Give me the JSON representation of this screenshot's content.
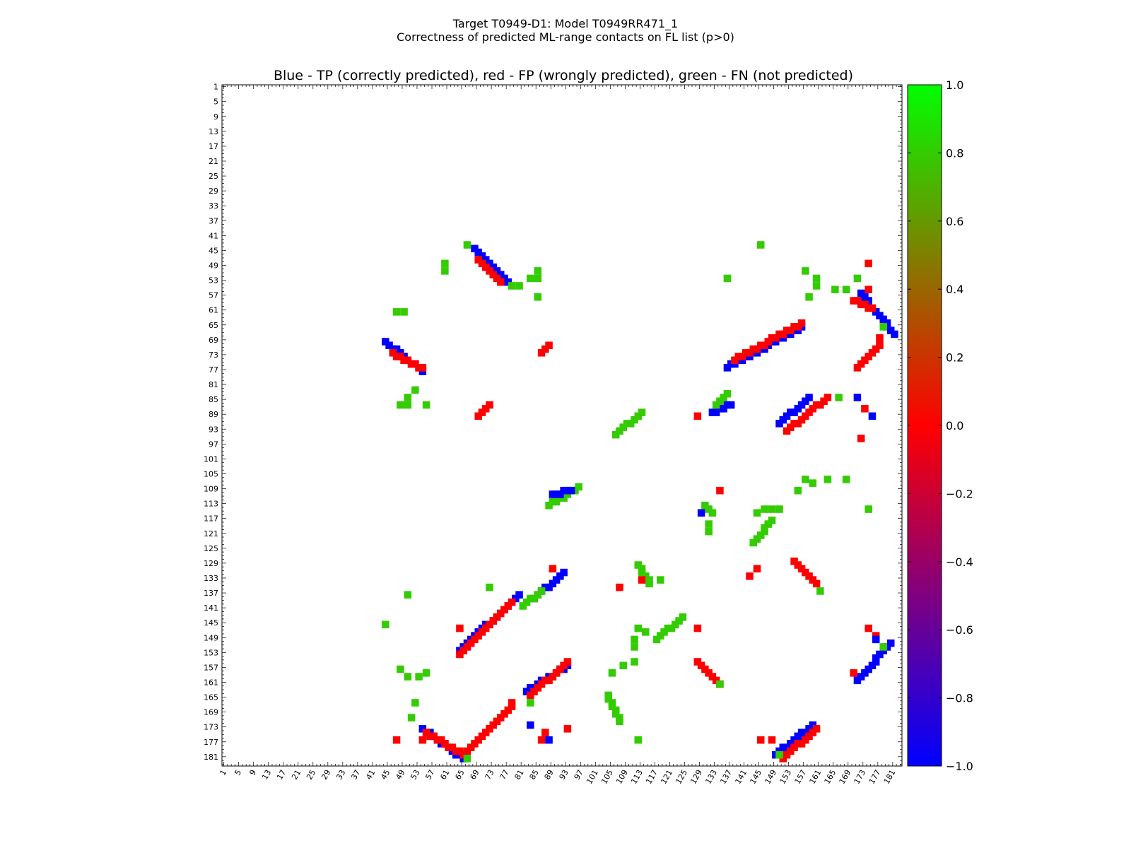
{
  "figure": {
    "title_line1": "Target T0949-D1: Model T0949RR471_1",
    "title_line2": "Correctness of predicted ML-range contacts on FL list (p>0)"
  },
  "chart_data": {
    "type": "heatmap",
    "title": "Blue - TP (correctly predicted), red - FP (wrongly predicted), green - FN (not predicted)",
    "xlabel": "",
    "ylabel": "",
    "grid": false,
    "xlim": [
      1,
      183
    ],
    "ylim": [
      1,
      183
    ],
    "tick_labels": [
      "1",
      "5",
      "9",
      "13",
      "17",
      "21",
      "25",
      "29",
      "33",
      "37",
      "41",
      "45",
      "49",
      "53",
      "57",
      "61",
      "65",
      "69",
      "73",
      "77",
      "81",
      "85",
      "89",
      "93",
      "97",
      "101",
      "105",
      "109",
      "113",
      "117",
      "121",
      "125",
      "129",
      "133",
      "137",
      "141",
      "145",
      "149",
      "153",
      "157",
      "161",
      "165",
      "169",
      "173",
      "177",
      "181"
    ],
    "colorbar": {
      "min": -1.0,
      "max": 1.0,
      "ticks": [
        "1.0",
        "0.8",
        "0.6",
        "0.4",
        "0.2",
        "0.0",
        "−0.2",
        "−0.4",
        "−0.6",
        "−0.8",
        "−1.0"
      ],
      "colors": [
        "#00ff00",
        "#ff0000",
        "#0000ff"
      ]
    },
    "categories": {
      "TP": {
        "value": -1.0,
        "color": "#0000ff"
      },
      "FP": {
        "value": 0.0,
        "color": "#ff0000"
      },
      "FN": {
        "value": 0.8,
        "color": "#33cc00"
      }
    },
    "segments": [
      {
        "x": [
          68,
          77
        ],
        "y": [
          44,
          53
        ],
        "c": "TP"
      },
      {
        "x": [
          69,
          75
        ],
        "y": [
          47,
          53
        ],
        "c": "FP"
      },
      {
        "x": [
          44,
          54
        ],
        "y": [
          69,
          77
        ],
        "c": "TP"
      },
      {
        "x": [
          46,
          54
        ],
        "y": [
          72,
          76
        ],
        "c": "FP"
      },
      {
        "x": [
          136,
          156
        ],
        "y": [
          76,
          65
        ],
        "c": "TP"
      },
      {
        "x": [
          138,
          156
        ],
        "y": [
          74,
          64
        ],
        "c": "FP"
      },
      {
        "x": [
          172,
          181
        ],
        "y": [
          56,
          67
        ],
        "c": "TP"
      },
      {
        "x": [
          170,
          175
        ],
        "y": [
          58,
          60
        ],
        "c": "FP"
      },
      {
        "x": [
          171,
          177
        ],
        "y": [
          76,
          70
        ],
        "c": "FP"
      },
      {
        "x": [
          150,
          158
        ],
        "y": [
          91,
          84
        ],
        "c": "TP"
      },
      {
        "x": [
          152,
          163
        ],
        "y": [
          93,
          84
        ],
        "c": "FP"
      },
      {
        "x": [
          132,
          137
        ],
        "y": [
          88,
          86
        ],
        "c": "TP"
      },
      {
        "x": [
          106,
          113
        ],
        "y": [
          94,
          88
        ],
        "c": "FN"
      },
      {
        "x": [
          88,
          96
        ],
        "y": [
          113,
          108
        ],
        "c": "FN"
      },
      {
        "x": [
          89,
          94
        ],
        "y": [
          110,
          109
        ],
        "c": "TP"
      },
      {
        "x": [
          143,
          148
        ],
        "y": [
          123,
          117
        ],
        "c": "FN"
      },
      {
        "x": [
          117,
          124
        ],
        "y": [
          149,
          143
        ],
        "c": "FN"
      },
      {
        "x": [
          64,
          80
        ],
        "y": [
          152,
          137
        ],
        "c": "TP"
      },
      {
        "x": [
          64,
          78
        ],
        "y": [
          153,
          139
        ],
        "c": "FP"
      },
      {
        "x": [
          84,
          92
        ],
        "y": [
          138,
          131
        ],
        "c": "TP"
      },
      {
        "x": [
          81,
          86
        ],
        "y": [
          140,
          136
        ],
        "c": "FN"
      },
      {
        "x": [
          82,
          93
        ],
        "y": [
          163,
          156
        ],
        "c": "TP"
      },
      {
        "x": [
          83,
          93
        ],
        "y": [
          164,
          155
        ],
        "c": "FP"
      },
      {
        "x": [
          171,
          180
        ],
        "y": [
          160,
          150
        ],
        "c": "TP"
      },
      {
        "x": [
          54,
          65
        ],
        "y": [
          173,
          181
        ],
        "c": "TP"
      },
      {
        "x": [
          55,
          65
        ],
        "y": [
          174,
          180
        ],
        "c": "FP"
      },
      {
        "x": [
          66,
          78
        ],
        "y": [
          179,
          167
        ],
        "c": "FP"
      },
      {
        "x": [
          149,
          159
        ],
        "y": [
          180,
          172
        ],
        "c": "TP"
      },
      {
        "x": [
          151,
          160
        ],
        "y": [
          181,
          173
        ],
        "c": "FP"
      },
      {
        "x": [
          128,
          134
        ],
        "y": [
          155,
          161
        ],
        "c": "FP"
      },
      {
        "x": [
          154,
          160
        ],
        "y": [
          128,
          134
        ],
        "c": "FP"
      },
      {
        "x": [
          86,
          88
        ],
        "y": [
          72,
          70
        ],
        "c": "FP"
      },
      {
        "x": [
          69,
          72
        ],
        "y": [
          89,
          86
        ],
        "c": "FP"
      },
      {
        "x": [
          104,
          107
        ],
        "y": [
          164,
          171
        ],
        "c": "FN"
      },
      {
        "x": [
          112,
          115
        ],
        "y": [
          129,
          134
        ],
        "c": "FN"
      },
      {
        "x": [
          130,
          132
        ],
        "y": [
          113,
          115
        ],
        "c": "FN"
      },
      {
        "x": [
          133,
          136
        ],
        "y": [
          86,
          83
        ],
        "c": "FN"
      }
    ],
    "points": [
      {
        "x": 66,
        "y": 43,
        "c": "FN"
      },
      {
        "x": 60,
        "y": 48,
        "c": "FN"
      },
      {
        "x": 60,
        "y": 50,
        "c": "FN"
      },
      {
        "x": 85,
        "y": 50,
        "c": "FN"
      },
      {
        "x": 83,
        "y": 52,
        "c": "FN"
      },
      {
        "x": 85,
        "y": 52,
        "c": "FN"
      },
      {
        "x": 80,
        "y": 54,
        "c": "FN"
      },
      {
        "x": 85,
        "y": 57,
        "c": "FN"
      },
      {
        "x": 78,
        "y": 54,
        "c": "FN"
      },
      {
        "x": 145,
        "y": 43,
        "c": "FN"
      },
      {
        "x": 136,
        "y": 52,
        "c": "FN"
      },
      {
        "x": 157,
        "y": 50,
        "c": "FN"
      },
      {
        "x": 160,
        "y": 52,
        "c": "FN"
      },
      {
        "x": 160,
        "y": 54,
        "c": "FN"
      },
      {
        "x": 158,
        "y": 57,
        "c": "FN"
      },
      {
        "x": 165,
        "y": 55,
        "c": "FN"
      },
      {
        "x": 168,
        "y": 55,
        "c": "FN"
      },
      {
        "x": 171,
        "y": 52,
        "c": "FN"
      },
      {
        "x": 174,
        "y": 48,
        "c": "FP"
      },
      {
        "x": 174,
        "y": 55,
        "c": "FP"
      },
      {
        "x": 47,
        "y": 61,
        "c": "FN"
      },
      {
        "x": 49,
        "y": 61,
        "c": "FN"
      },
      {
        "x": 52,
        "y": 82,
        "c": "FN"
      },
      {
        "x": 50,
        "y": 84,
        "c": "FN"
      },
      {
        "x": 48,
        "y": 86,
        "c": "FN"
      },
      {
        "x": 50,
        "y": 86,
        "c": "FN"
      },
      {
        "x": 55,
        "y": 86,
        "c": "FN"
      },
      {
        "x": 128,
        "y": 89,
        "c": "FP"
      },
      {
        "x": 166,
        "y": 84,
        "c": "FN"
      },
      {
        "x": 171,
        "y": 84,
        "c": "TP"
      },
      {
        "x": 173,
        "y": 87,
        "c": "FP"
      },
      {
        "x": 175,
        "y": 89,
        "c": "TP"
      },
      {
        "x": 172,
        "y": 95,
        "c": "FP"
      },
      {
        "x": 178,
        "y": 65,
        "c": "FN"
      },
      {
        "x": 177,
        "y": 68,
        "c": "FP"
      },
      {
        "x": 157,
        "y": 106,
        "c": "FN"
      },
      {
        "x": 159,
        "y": 107,
        "c": "FN"
      },
      {
        "x": 163,
        "y": 106,
        "c": "FN"
      },
      {
        "x": 168,
        "y": 106,
        "c": "FN"
      },
      {
        "x": 155,
        "y": 109,
        "c": "FN"
      },
      {
        "x": 134,
        "y": 109,
        "c": "FP"
      },
      {
        "x": 174,
        "y": 114,
        "c": "FN"
      },
      {
        "x": 150,
        "y": 114,
        "c": "FN"
      },
      {
        "x": 146,
        "y": 114,
        "c": "FN"
      },
      {
        "x": 148,
        "y": 114,
        "c": "FN"
      },
      {
        "x": 144,
        "y": 115,
        "c": "FN"
      },
      {
        "x": 129,
        "y": 115,
        "c": "TP"
      },
      {
        "x": 131,
        "y": 118,
        "c": "FN"
      },
      {
        "x": 131,
        "y": 120,
        "c": "FN"
      },
      {
        "x": 89,
        "y": 130,
        "c": "FP"
      },
      {
        "x": 113,
        "y": 133,
        "c": "FP"
      },
      {
        "x": 115,
        "y": 133,
        "c": "FN"
      },
      {
        "x": 118,
        "y": 133,
        "c": "FN"
      },
      {
        "x": 107,
        "y": 135,
        "c": "FP"
      },
      {
        "x": 144,
        "y": 130,
        "c": "FP"
      },
      {
        "x": 142,
        "y": 132,
        "c": "FP"
      },
      {
        "x": 161,
        "y": 136,
        "c": "FN"
      },
      {
        "x": 50,
        "y": 137,
        "c": "FN"
      },
      {
        "x": 72,
        "y": 135,
        "c": "FN"
      },
      {
        "x": 44,
        "y": 145,
        "c": "FN"
      },
      {
        "x": 64,
        "y": 146,
        "c": "FP"
      },
      {
        "x": 112,
        "y": 146,
        "c": "FN"
      },
      {
        "x": 114,
        "y": 147,
        "c": "FN"
      },
      {
        "x": 111,
        "y": 149,
        "c": "FN"
      },
      {
        "x": 111,
        "y": 151,
        "c": "FN"
      },
      {
        "x": 111,
        "y": 155,
        "c": "FN"
      },
      {
        "x": 108,
        "y": 156,
        "c": "FN"
      },
      {
        "x": 128,
        "y": 146,
        "c": "FP"
      },
      {
        "x": 174,
        "y": 146,
        "c": "FP"
      },
      {
        "x": 176,
        "y": 148,
        "c": "FP"
      },
      {
        "x": 176,
        "y": 149,
        "c": "TP"
      },
      {
        "x": 178,
        "y": 151,
        "c": "FN"
      },
      {
        "x": 48,
        "y": 157,
        "c": "FN"
      },
      {
        "x": 50,
        "y": 159,
        "c": "FN"
      },
      {
        "x": 53,
        "y": 159,
        "c": "FN"
      },
      {
        "x": 55,
        "y": 158,
        "c": "FN"
      },
      {
        "x": 105,
        "y": 158,
        "c": "FN"
      },
      {
        "x": 134,
        "y": 161,
        "c": "FN"
      },
      {
        "x": 170,
        "y": 158,
        "c": "FP"
      },
      {
        "x": 52,
        "y": 166,
        "c": "FN"
      },
      {
        "x": 83,
        "y": 166,
        "c": "FN"
      },
      {
        "x": 78,
        "y": 166,
        "c": "FP"
      },
      {
        "x": 51,
        "y": 170,
        "c": "FN"
      },
      {
        "x": 83,
        "y": 172,
        "c": "TP"
      },
      {
        "x": 93,
        "y": 173,
        "c": "FP"
      },
      {
        "x": 87,
        "y": 174,
        "c": "FP"
      },
      {
        "x": 86,
        "y": 176,
        "c": "FP"
      },
      {
        "x": 88,
        "y": 176,
        "c": "TP"
      },
      {
        "x": 112,
        "y": 176,
        "c": "FN"
      },
      {
        "x": 47,
        "y": 176,
        "c": "FP"
      },
      {
        "x": 54,
        "y": 176,
        "c": "FP"
      },
      {
        "x": 66,
        "y": 181,
        "c": "FN"
      },
      {
        "x": 145,
        "y": 176,
        "c": "FP"
      },
      {
        "x": 148,
        "y": 176,
        "c": "FP"
      },
      {
        "x": 150,
        "y": 180,
        "c": "FN"
      }
    ]
  }
}
